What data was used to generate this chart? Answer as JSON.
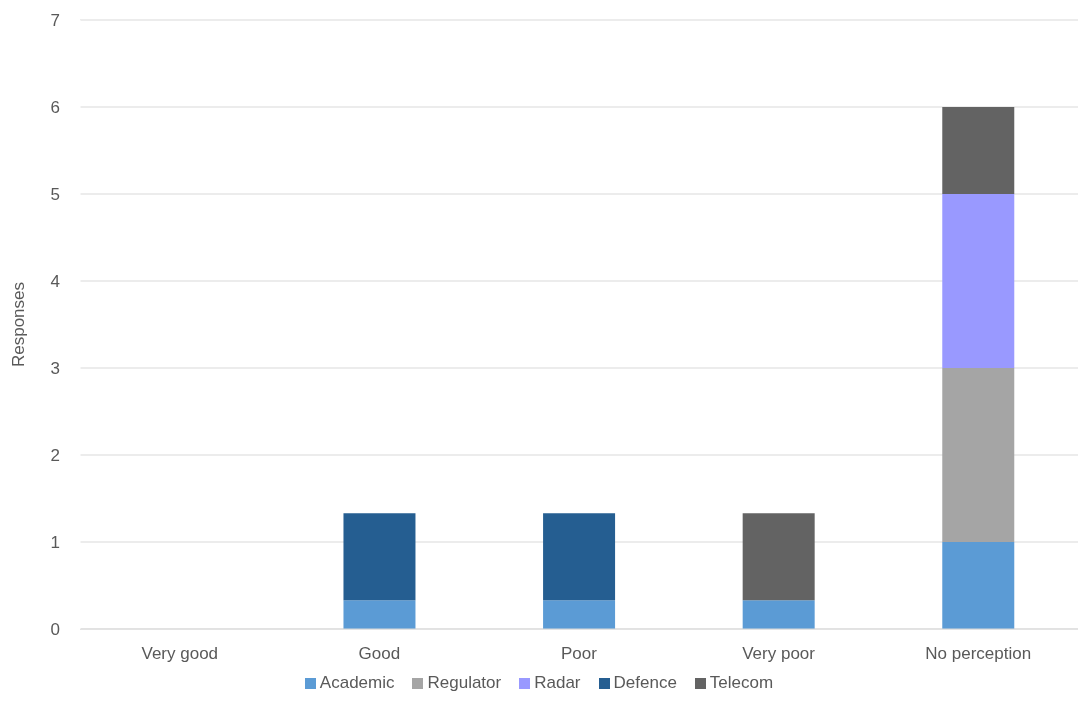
{
  "chart_data": {
    "type": "bar",
    "ylabel": "Responses",
    "categories": [
      "Very good",
      "Good",
      "Poor",
      "Very poor",
      "No perception"
    ],
    "series": [
      {
        "name": "Academic",
        "color": "#5b9bd5",
        "values": [
          0,
          0.33,
          0.33,
          0.33,
          1
        ]
      },
      {
        "name": "Regulator",
        "color": "#a5a5a5",
        "values": [
          0,
          0,
          0,
          0,
          2
        ]
      },
      {
        "name": "Radar",
        "color": "#9999ff",
        "values": [
          0,
          0,
          0,
          0,
          2
        ]
      },
      {
        "name": "Defence",
        "color": "#255e91",
        "values": [
          0,
          1,
          1,
          0,
          0
        ]
      },
      {
        "name": "Telecom",
        "color": "#636363",
        "values": [
          0,
          0,
          0,
          1,
          1
        ]
      }
    ],
    "stacked": true,
    "ylim": [
      0,
      7
    ],
    "yticks": [
      0,
      1,
      2,
      3,
      4,
      5,
      6,
      7
    ],
    "grid": "y",
    "legend": "bottom"
  }
}
